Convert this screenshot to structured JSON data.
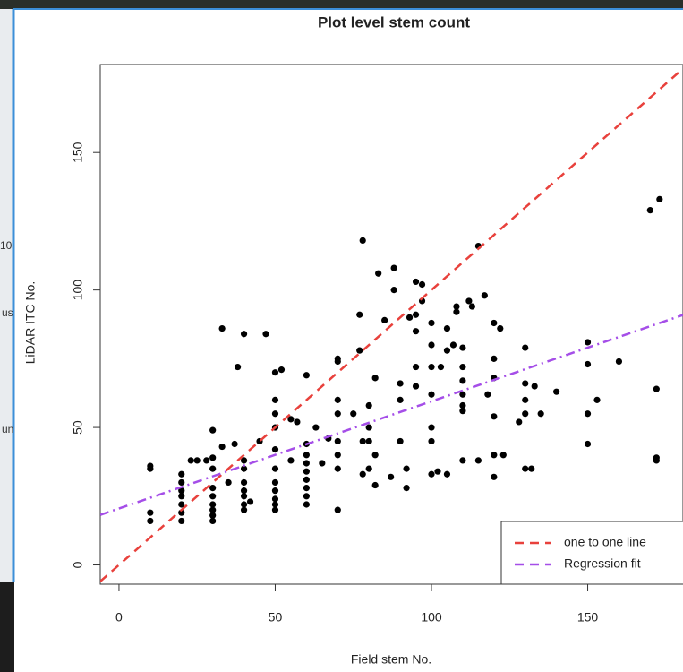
{
  "chart_data": {
    "type": "scatter",
    "title": "Plot level stem count",
    "xlabel": "Field stem No.",
    "ylabel": "LiDAR ITC No.",
    "x": [
      10,
      10,
      10,
      10,
      20,
      20,
      20,
      20,
      20,
      20,
      20,
      23,
      25,
      28,
      30,
      30,
      30,
      30,
      30,
      30,
      30,
      30,
      30,
      33,
      33,
      35,
      37,
      38,
      40,
      40,
      40,
      40,
      40,
      40,
      40,
      40,
      42,
      45,
      47,
      50,
      50,
      50,
      50,
      50,
      50,
      50,
      50,
      50,
      50,
      50,
      52,
      55,
      55,
      57,
      60,
      60,
      60,
      60,
      60,
      60,
      60,
      60,
      60,
      63,
      65,
      67,
      70,
      70,
      70,
      70,
      70,
      70,
      70,
      70,
      75,
      77,
      77,
      78,
      78,
      78,
      80,
      80,
      80,
      80,
      82,
      82,
      82,
      83,
      85,
      87,
      88,
      88,
      90,
      90,
      90,
      92,
      92,
      93,
      95,
      95,
      95,
      95,
      95,
      97,
      97,
      100,
      100,
      100,
      100,
      100,
      100,
      100,
      102,
      103,
      105,
      105,
      105,
      107,
      108,
      108,
      110,
      110,
      110,
      110,
      110,
      110,
      110,
      112,
      113,
      115,
      115,
      117,
      118,
      120,
      120,
      120,
      120,
      120,
      120,
      122,
      123,
      128,
      130,
      130,
      130,
      130,
      130,
      132,
      133,
      135,
      140,
      150,
      150,
      150,
      150,
      153,
      160,
      170,
      172,
      172,
      172,
      173
    ],
    "y": [
      35,
      36,
      19,
      16,
      16,
      19,
      22,
      25,
      27,
      30,
      33,
      38,
      38,
      38,
      16,
      18,
      20,
      22,
      25,
      28,
      35,
      39,
      49,
      86,
      43,
      30,
      44,
      72,
      84,
      20,
      22,
      25,
      27,
      30,
      35,
      38,
      23,
      45,
      84,
      20,
      22,
      24,
      27,
      30,
      35,
      42,
      50,
      55,
      60,
      70,
      71,
      53,
      38,
      52,
      22,
      25,
      28,
      31,
      34,
      37,
      40,
      44,
      69,
      50,
      37,
      46,
      20,
      35,
      40,
      45,
      55,
      60,
      74,
      75,
      55,
      78,
      91,
      118,
      33,
      45,
      35,
      45,
      50,
      58,
      29,
      40,
      68,
      106,
      89,
      32,
      108,
      100,
      45,
      60,
      66,
      28,
      35,
      90,
      103,
      85,
      91,
      72,
      65,
      102,
      96,
      33,
      45,
      50,
      62,
      72,
      80,
      88,
      34,
      72,
      33,
      86,
      78,
      80,
      92,
      94,
      38,
      56,
      58,
      62,
      67,
      72,
      79,
      96,
      94,
      116,
      38,
      98,
      62,
      32,
      40,
      54,
      68,
      75,
      88,
      86,
      40,
      52,
      35,
      55,
      60,
      66,
      79,
      35,
      65,
      55,
      63,
      44,
      55,
      73,
      81,
      60,
      74,
      129,
      64,
      39,
      38,
      133
    ],
    "color": "#000000",
    "xlim": [
      -6,
      180.5
    ],
    "ylim": [
      -7,
      182
    ],
    "xticks": [
      0,
      50,
      100,
      150
    ],
    "yticks": [
      0,
      50,
      100,
      150
    ],
    "lines": [
      {
        "name": "one to one line",
        "color": "#e8413c",
        "x": [
          -6,
          180.5
        ],
        "y": [
          -6,
          180.5
        ]
      },
      {
        "name": "Regression fit",
        "color": "#a54ee8",
        "x": [
          -6,
          180.5
        ],
        "y": [
          18.2,
          90.9
        ]
      }
    ],
    "legend": "bottom right"
  },
  "background_ui": {
    "texts": [
      "10",
      "us",
      "un"
    ]
  }
}
